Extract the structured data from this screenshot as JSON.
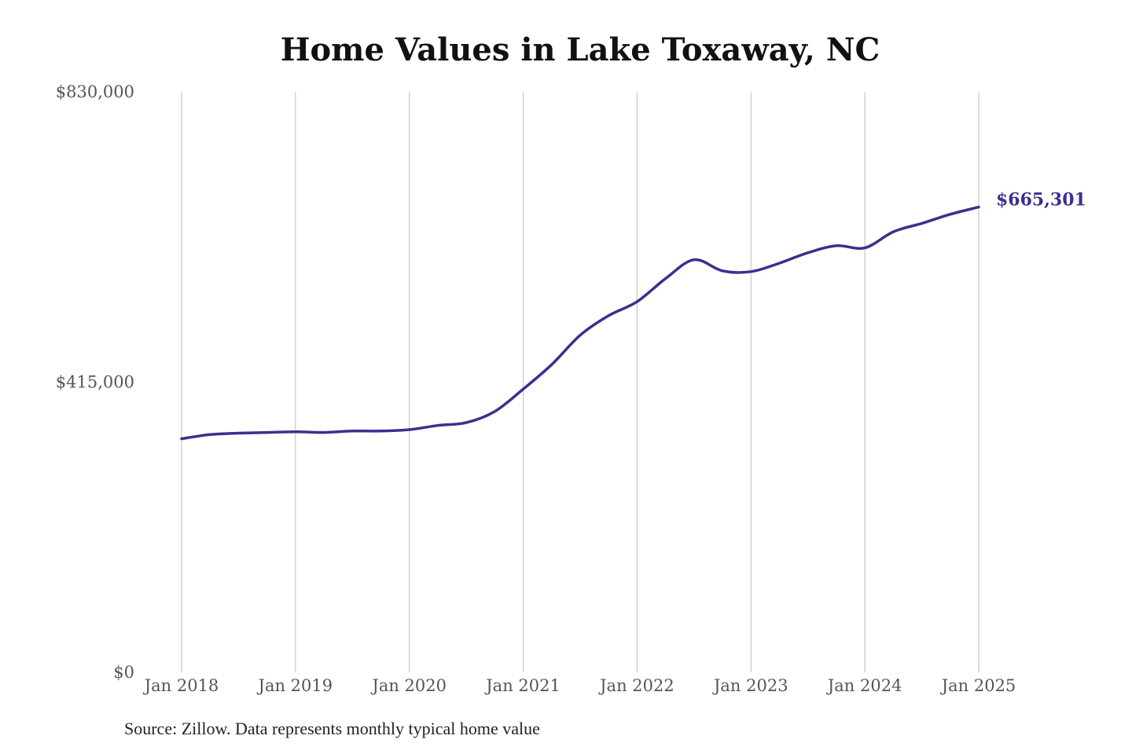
{
  "chart_data": {
    "type": "line",
    "title": "Home Values in Lake Toxaway, NC",
    "source": "Source: Zillow. Data represents monthly typical home value",
    "ylim": [
      0,
      830000
    ],
    "y_ticks": [
      {
        "value": 0,
        "label": "$0"
      },
      {
        "value": 415000,
        "label": "$415,000"
      },
      {
        "value": 830000,
        "label": "$830,000"
      }
    ],
    "x_ticks": [
      "Jan 2018",
      "Jan 2019",
      "Jan 2020",
      "Jan 2021",
      "Jan 2022",
      "Jan 2023",
      "Jan 2024",
      "Jan 2025"
    ],
    "grid": {
      "vertical": true,
      "horizontal": false
    },
    "line_color": "#3b2f8f",
    "end_label": "$665,301",
    "series": [
      {
        "x": [
          "2018-01",
          "2018-04",
          "2018-07",
          "2018-10",
          "2019-01",
          "2019-04",
          "2019-07",
          "2019-10",
          "2020-01",
          "2020-04",
          "2020-07",
          "2020-10",
          "2021-01",
          "2021-04",
          "2021-07",
          "2021-10",
          "2022-01",
          "2022-04",
          "2022-07",
          "2022-10",
          "2023-01",
          "2023-04",
          "2023-07",
          "2023-10",
          "2024-01",
          "2024-04",
          "2024-07",
          "2024-10",
          "2025-01"
        ],
        "values": [
          334000,
          340000,
          342000,
          343000,
          344000,
          343000,
          345000,
          345000,
          347000,
          353000,
          357000,
          373000,
          405000,
          440000,
          482000,
          510000,
          530000,
          563000,
          590000,
          574000,
          573000,
          585000,
          600000,
          610000,
          607000,
          630000,
          642000,
          655000,
          665301
        ]
      }
    ]
  }
}
